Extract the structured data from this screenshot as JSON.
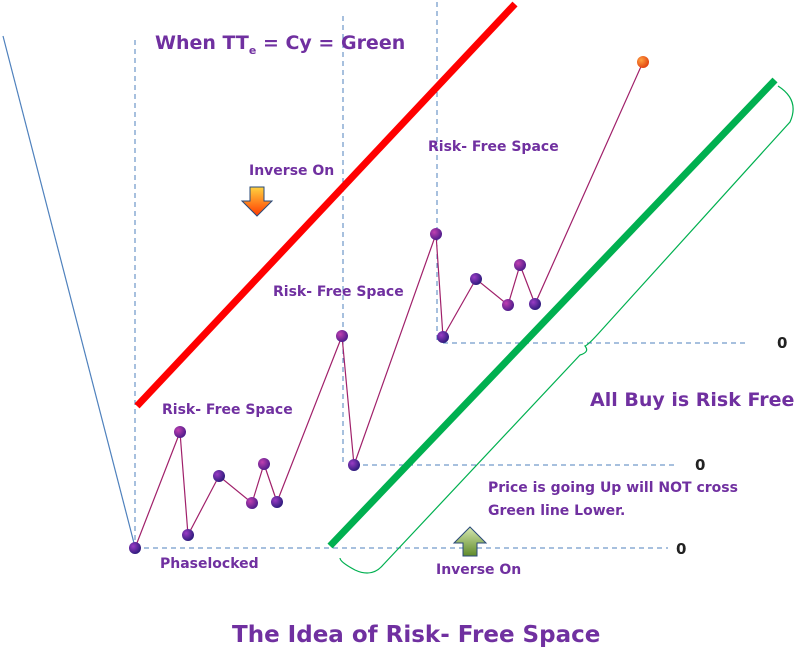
{
  "header": {
    "formula_prefix": "When TT",
    "formula_sub": "e",
    "formula_suffix": " = Cy = Green"
  },
  "labels": {
    "risk_free_1": "Risk- Free Space",
    "risk_free_2": "Risk- Free Space",
    "risk_free_3": "Risk- Free Space",
    "inverse_on_top": "Inverse On",
    "inverse_on_bottom": "Inverse On",
    "phaselocked": "Phaselocked",
    "all_buy": "All Buy is Risk Free",
    "price_note_line1": "Price is going Up will NOT cross",
    "price_note_line2": "Green line Lower.",
    "zero_top": "0",
    "zero_mid": "0",
    "zero_bottom": "0"
  },
  "footer": {
    "title": "The Idea of Risk- Free Space"
  },
  "colors": {
    "red_line": "#ff0000",
    "green_line": "#00b050",
    "price_line": "#a0206a",
    "dashed": "#4f81bd",
    "bracket": "#00b050",
    "text": "#7030a0"
  }
}
